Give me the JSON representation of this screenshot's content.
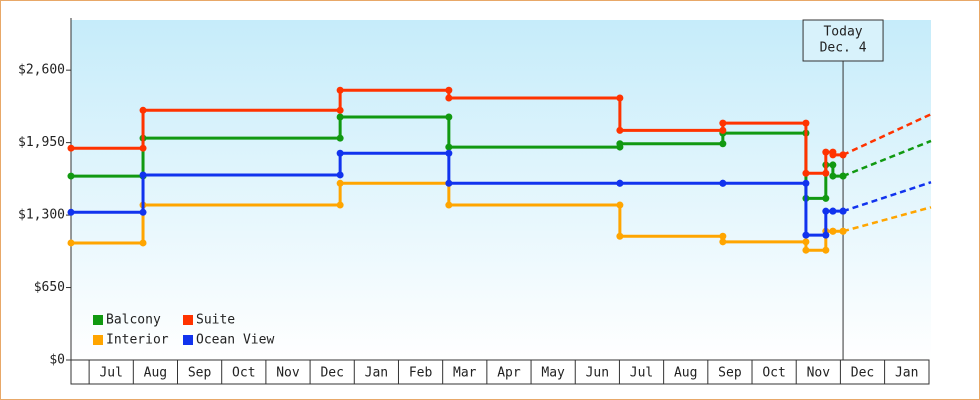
{
  "chart_data": {
    "type": "step-line",
    "x": [
      -0.41,
      1.22,
      5.68,
      8.14,
      12.01,
      14.34,
      16.22,
      16.67,
      16.83,
      17.06
    ],
    "xlim": [
      -0.41,
      19.05
    ],
    "xticks": [
      {
        "value": 0,
        "label": "Jul"
      },
      {
        "value": 1,
        "label": "Aug"
      },
      {
        "value": 2,
        "label": "Sep"
      },
      {
        "value": 3,
        "label": "Oct"
      },
      {
        "value": 4,
        "label": "Nov"
      },
      {
        "value": 5,
        "label": "Dec"
      },
      {
        "value": 6,
        "label": "Jan"
      },
      {
        "value": 7,
        "label": "Feb"
      },
      {
        "value": 8,
        "label": "Mar"
      },
      {
        "value": 9,
        "label": "Apr"
      },
      {
        "value": 10,
        "label": "May"
      },
      {
        "value": 11,
        "label": "Jun"
      },
      {
        "value": 12,
        "label": "Jul"
      },
      {
        "value": 13,
        "label": "Aug"
      },
      {
        "value": 14,
        "label": "Sep"
      },
      {
        "value": 15,
        "label": "Oct"
      },
      {
        "value": 16,
        "label": "Nov"
      },
      {
        "value": 17,
        "label": "Dec"
      },
      {
        "value": 18,
        "label": "Jan"
      }
    ],
    "ylim": [
      0,
      3050
    ],
    "yticks": [
      {
        "value": 0,
        "label": "$0"
      },
      {
        "value": 650,
        "label": "$650"
      },
      {
        "value": 1300,
        "label": "$1,300"
      },
      {
        "value": 1950,
        "label": "$1,950"
      },
      {
        "value": 2600,
        "label": "$2,600"
      }
    ],
    "projection_x": 19.05,
    "series": [
      {
        "name": "Balcony",
        "color": "#119911",
        "values": [
          1650,
          1990,
          2180,
          1910,
          1940,
          2035,
          1450,
          1750,
          1650,
          1650
        ],
        "projected_value": 1965
      },
      {
        "name": "Suite",
        "color": "#ff3300",
        "values": [
          1900,
          2240,
          2420,
          2350,
          2060,
          2125,
          1675,
          1865,
          1840,
          1840
        ],
        "projected_value": 2205
      },
      {
        "name": "Interior",
        "color": "#ffa500",
        "values": [
          1050,
          1390,
          1585,
          1390,
          1110,
          1060,
          985,
          1155,
          1155,
          1155
        ],
        "projected_value": 1370
      },
      {
        "name": "Ocean View",
        "color": "#1133ee",
        "values": [
          1325,
          1660,
          1855,
          1585,
          1585,
          1585,
          1120,
          1335,
          1335,
          1335
        ],
        "projected_value": 1595
      }
    ],
    "annotation": {
      "x": 17.06,
      "lines": [
        "Today",
        "Dec. 4"
      ]
    }
  }
}
